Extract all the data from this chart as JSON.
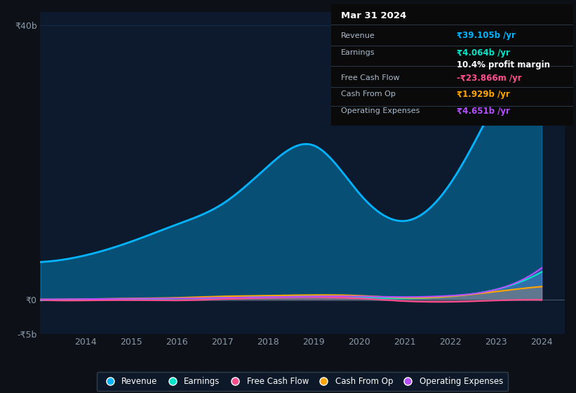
{
  "bg_color": "#0d1117",
  "chart_bg": "#0d1a2d",
  "years": [
    2013,
    2014,
    2015,
    2016,
    2017,
    2018,
    2019,
    2020,
    2021,
    2022,
    2023,
    2024
  ],
  "revenue": [
    5.5,
    6.5,
    8.5,
    11.0,
    14.0,
    19.5,
    22.5,
    15.5,
    11.5,
    17.0,
    29.0,
    39.105
  ],
  "earnings": [
    -0.1,
    0.05,
    0.1,
    0.2,
    0.3,
    0.5,
    0.6,
    0.4,
    0.2,
    0.5,
    1.5,
    4.064
  ],
  "free_cash_flow": [
    -0.05,
    -0.1,
    -0.05,
    -0.1,
    0.1,
    0.3,
    0.4,
    0.2,
    -0.2,
    -0.3,
    -0.1,
    -0.024
  ],
  "cash_from_op": [
    0.05,
    0.1,
    0.2,
    0.3,
    0.5,
    0.6,
    0.7,
    0.6,
    0.3,
    0.5,
    1.2,
    1.929
  ],
  "operating_expenses": [
    0.05,
    0.1,
    0.15,
    0.2,
    0.3,
    0.4,
    0.5,
    0.5,
    0.4,
    0.6,
    1.5,
    4.651
  ],
  "revenue_color": "#00b4ff",
  "earnings_color": "#00e6c8",
  "free_cash_flow_color": "#ff4d8d",
  "cash_from_op_color": "#ffa500",
  "operating_expenses_color": "#b44fff",
  "zero_line_color": "#4a5568",
  "grid_color": "#1e3a5f",
  "ytick_labels": [
    "-₹5b",
    "₹0",
    "₹40b"
  ],
  "ytick_values": [
    -5,
    0,
    40
  ],
  "xtick_labels": [
    "2014",
    "2015",
    "2016",
    "2017",
    "2018",
    "2019",
    "2020",
    "2021",
    "2022",
    "2023",
    "2024"
  ],
  "xtick_values": [
    2014,
    2015,
    2016,
    2017,
    2018,
    2019,
    2020,
    2021,
    2022,
    2023,
    2024
  ],
  "tooltip_title": "Mar 31 2024",
  "tooltip_revenue": "₹39.105b /yr",
  "tooltip_earnings": "₹4.064b /yr",
  "tooltip_profit_margin": "10.4% profit margin",
  "tooltip_fcf": "-₹23.866m /yr",
  "tooltip_cash_op": "₹1.929b /yr",
  "tooltip_opex": "₹4.651b /yr",
  "legend_labels": [
    "Revenue",
    "Earnings",
    "Free Cash Flow",
    "Cash From Op",
    "Operating Expenses"
  ]
}
